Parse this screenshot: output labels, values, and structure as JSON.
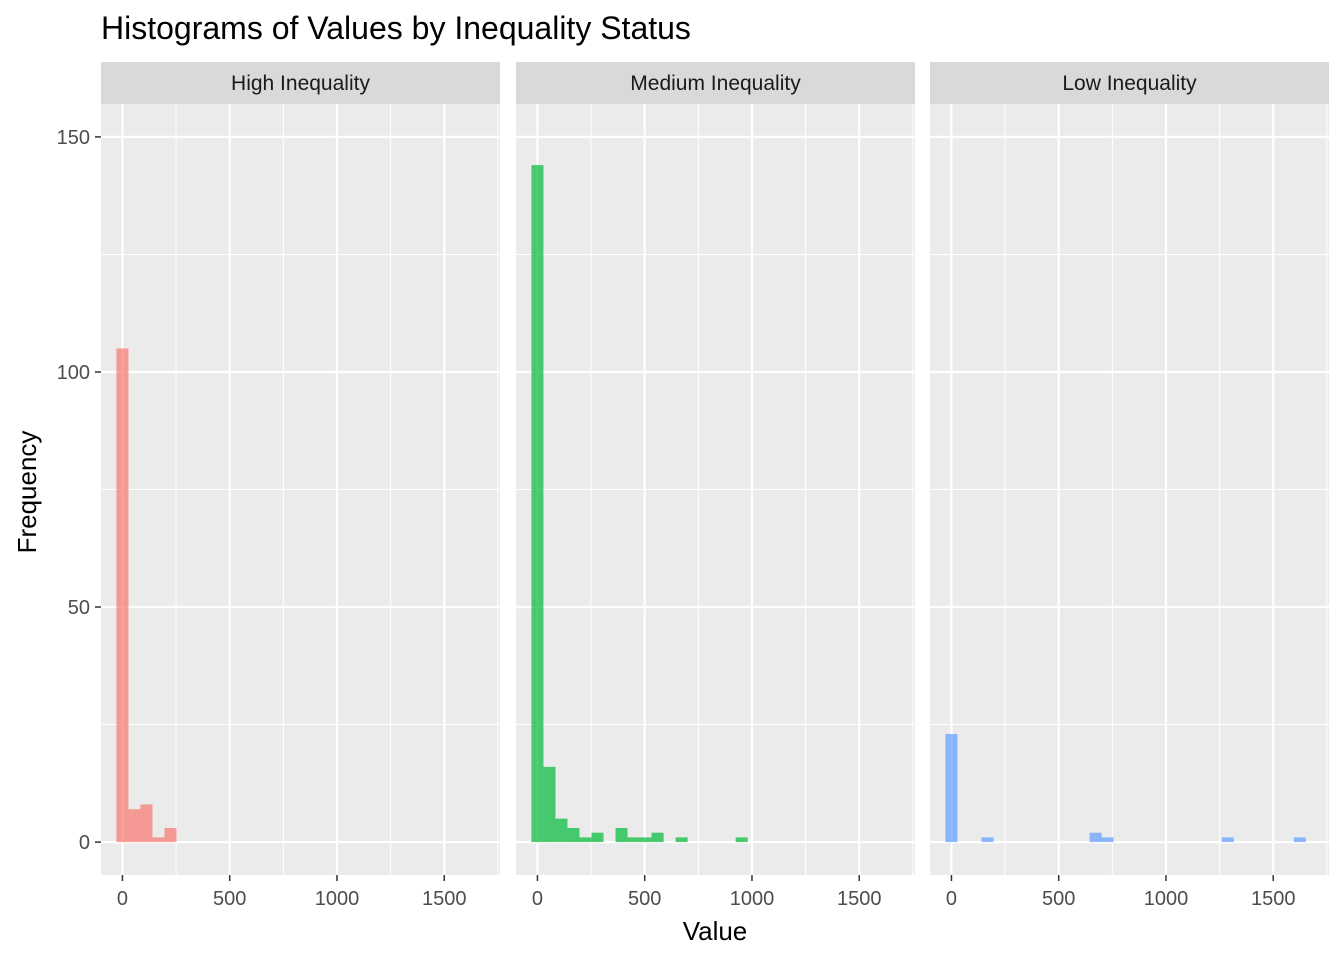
{
  "chart_data": {
    "type": "bar",
    "title": "Histograms of Values by Inequality Status",
    "xlabel": "Value",
    "ylabel": "Frequency",
    "xlim": [
      -100,
      1760
    ],
    "ylim": [
      -7,
      157
    ],
    "x_ticks": [
      0,
      500,
      1000,
      1500
    ],
    "x_tick_labels": [
      "0",
      "500",
      "1000",
      "1500"
    ],
    "y_ticks": [
      0,
      50,
      100,
      150
    ],
    "y_tick_labels": [
      "0",
      "50",
      "100",
      "150"
    ],
    "bin_width": 56,
    "grid": true,
    "panels": [
      {
        "label": "High Inequality",
        "color": "#F8766D",
        "bins": [
          {
            "x": 0,
            "count": 105
          },
          {
            "x": 56,
            "count": 7
          },
          {
            "x": 112,
            "count": 8
          },
          {
            "x": 168,
            "count": 1
          },
          {
            "x": 224,
            "count": 3
          }
        ]
      },
      {
        "label": "Medium Inequality",
        "color": "#00BA38",
        "bins": [
          {
            "x": 0,
            "count": 144
          },
          {
            "x": 56,
            "count": 16
          },
          {
            "x": 112,
            "count": 5
          },
          {
            "x": 168,
            "count": 3
          },
          {
            "x": 224,
            "count": 1
          },
          {
            "x": 280,
            "count": 2
          },
          {
            "x": 392,
            "count": 3
          },
          {
            "x": 448,
            "count": 1
          },
          {
            "x": 504,
            "count": 1
          },
          {
            "x": 560,
            "count": 2
          },
          {
            "x": 672,
            "count": 1
          },
          {
            "x": 952,
            "count": 1
          }
        ]
      },
      {
        "label": "Low Inequality",
        "color": "#619CFF",
        "bins": [
          {
            "x": 0,
            "count": 23
          },
          {
            "x": 168,
            "count": 1
          },
          {
            "x": 672,
            "count": 2
          },
          {
            "x": 728,
            "count": 1
          },
          {
            "x": 1288,
            "count": 1
          },
          {
            "x": 1624,
            "count": 1
          }
        ]
      }
    ]
  }
}
